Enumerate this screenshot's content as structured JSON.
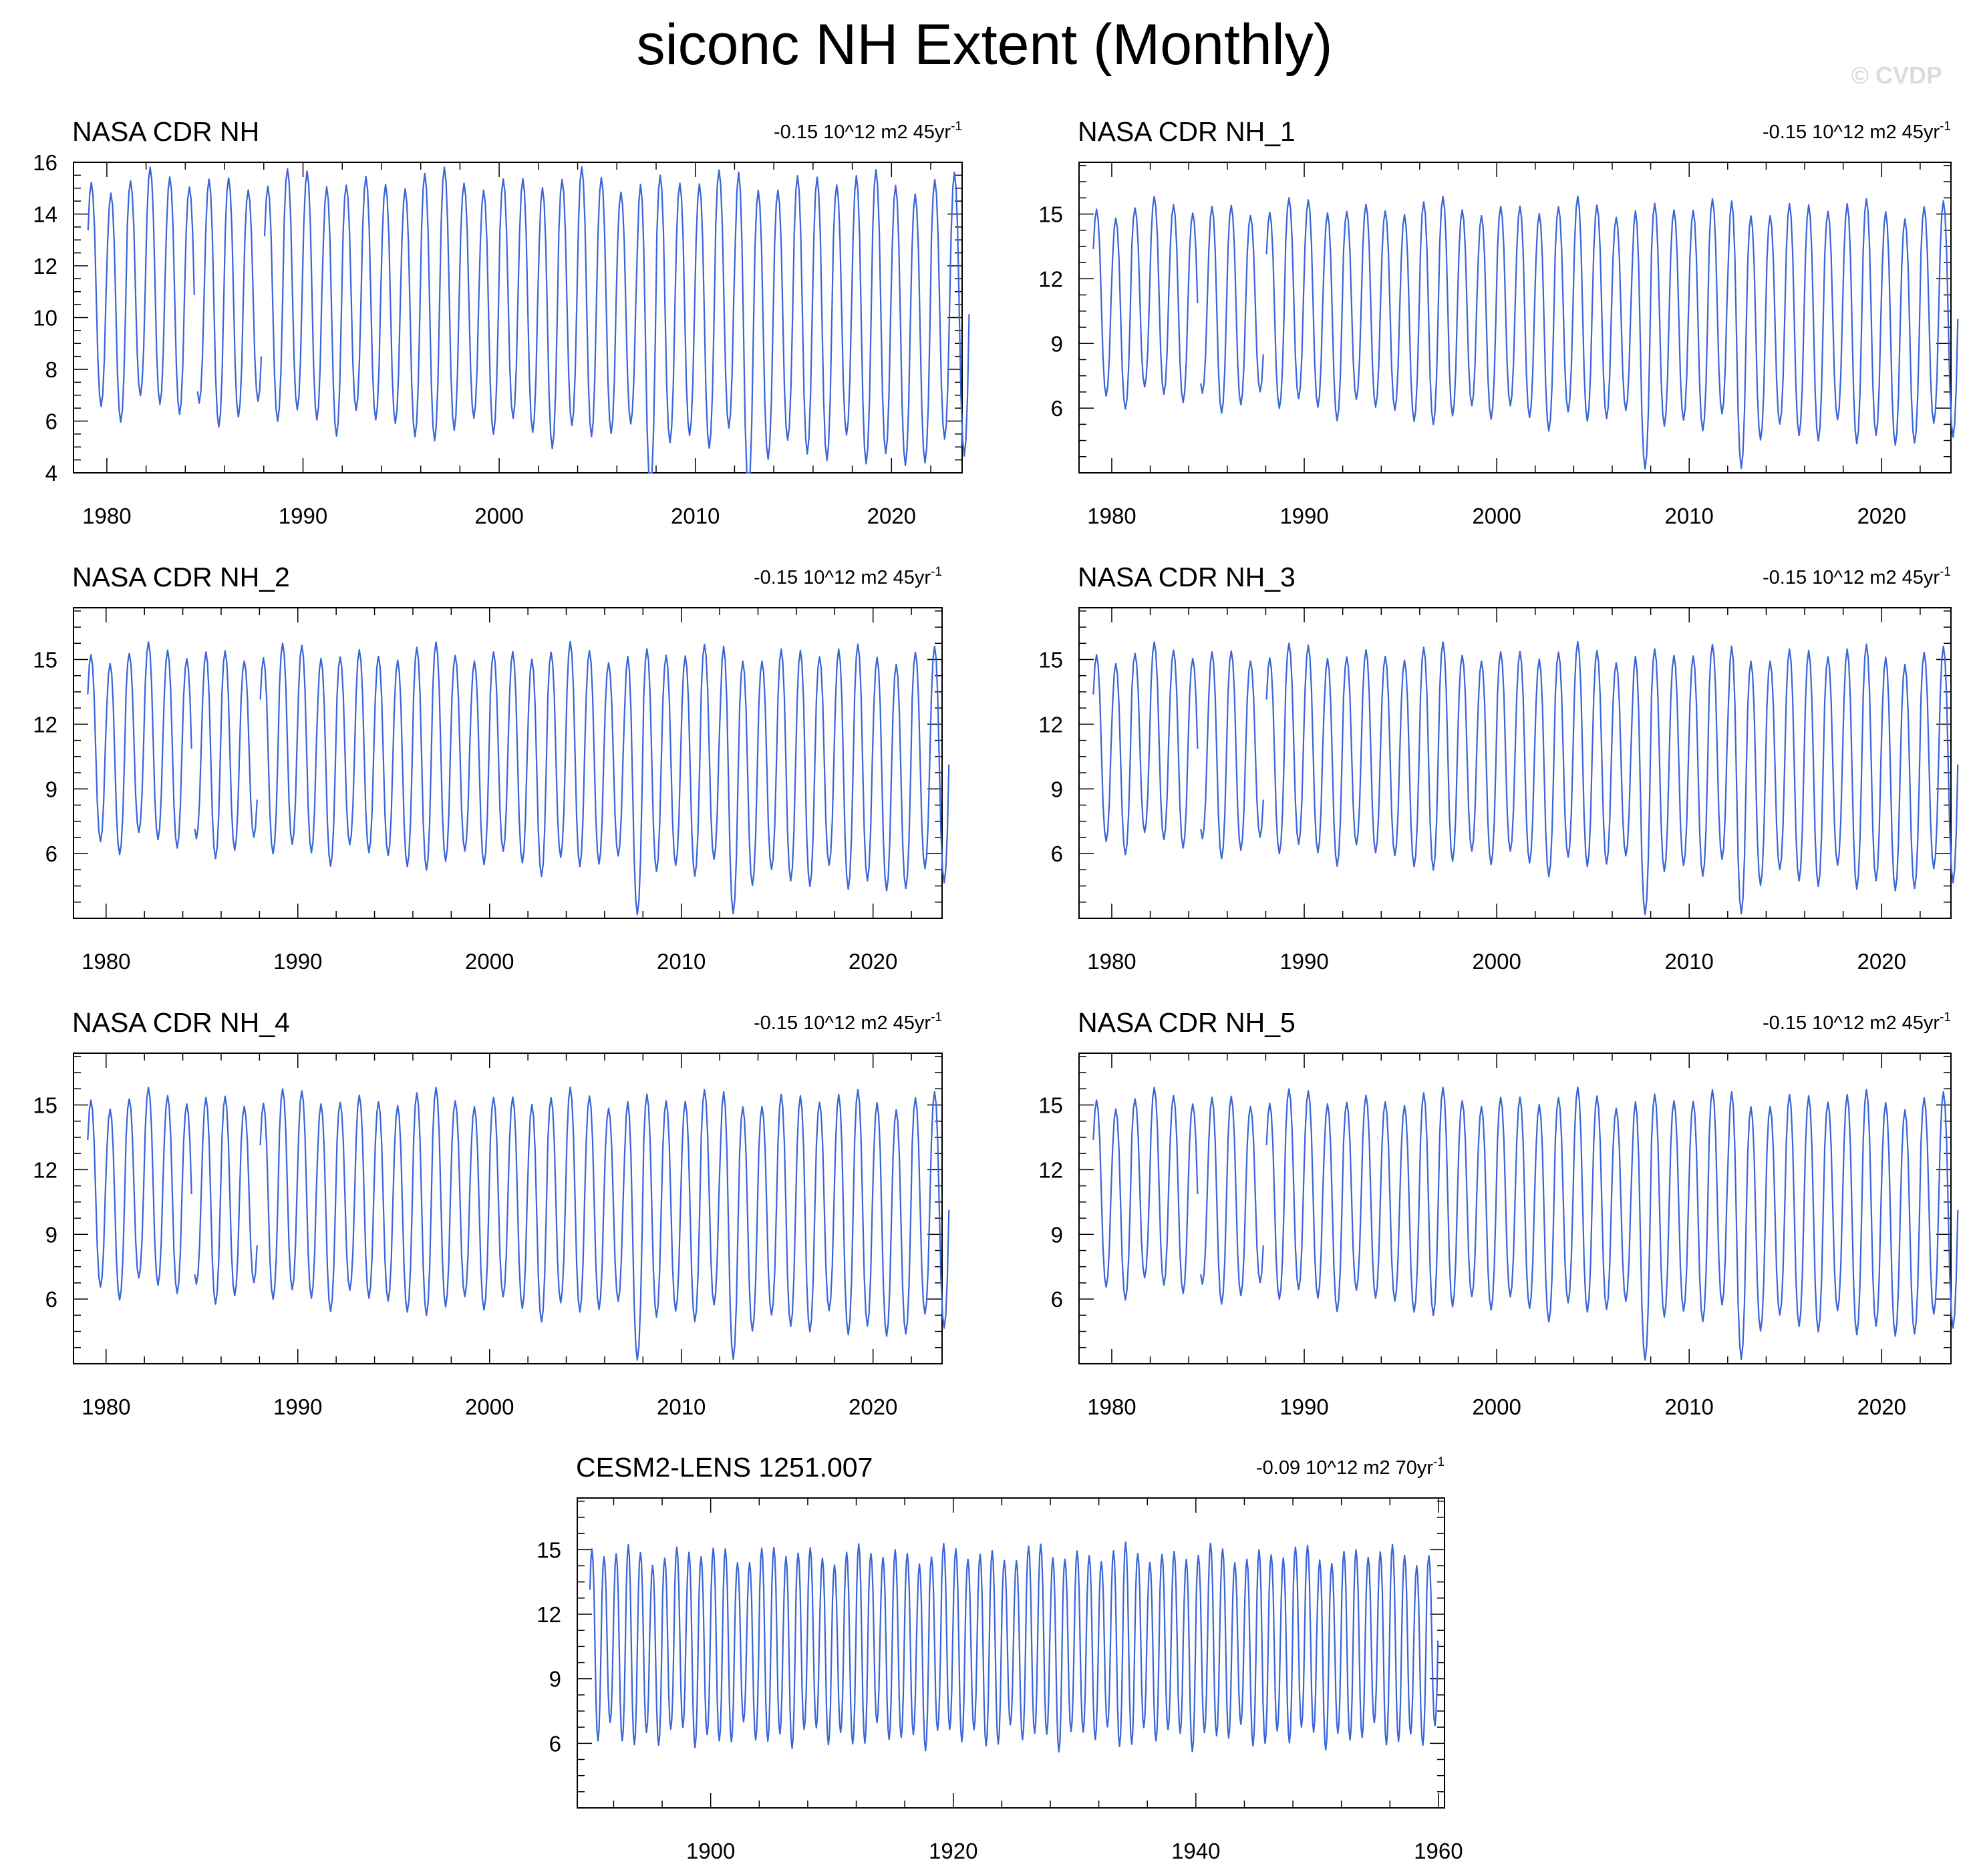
{
  "title": "siconc NH Extent (Monthly)",
  "credit": "© CVDP",
  "style": {
    "line_color": "#3a64d8",
    "axis_color": "#000000"
  },
  "chart_data": [
    {
      "type": "line",
      "title": "NASA CDR NH",
      "trend": "-0.15 10^12 m2 45yr",
      "trend_exp": "-1",
      "series": {
        "name": "NASA CDR NH",
        "start_year": 1979.0,
        "end_year": 2023.9,
        "months": 540,
        "max_mean": 15.3,
        "min_mean": 6.6,
        "min_trend_per_year": -0.045,
        "min_anomalies": {
          "1995": -0.9,
          "2007": -1.6,
          "2012": -1.9,
          "2016": -0.6,
          "2020": -0.5
        },
        "missing": [
          [
            1984.5,
            1984.6
          ],
          [
            1987.9,
            1988.0
          ]
        ]
      },
      "xlim": [
        1978.3,
        2023.6
      ],
      "xticks": [
        1980,
        1990,
        2000,
        2010,
        2020
      ],
      "ylim": [
        4,
        16
      ],
      "yticks": [
        4,
        6,
        8,
        10,
        12,
        14,
        16
      ]
    },
    {
      "type": "line",
      "title": "NASA CDR NH_1",
      "trend": "-0.15 10^12 m2 45yr",
      "trend_exp": "-1",
      "series": {
        "name": "NASA CDR NH_1",
        "start_year": 1979.0,
        "end_year": 2023.9,
        "months": 540,
        "max_mean": 15.3,
        "min_mean": 6.6,
        "min_trend_per_year": -0.045,
        "min_anomalies": {
          "1995": -0.9,
          "2007": -1.6,
          "2012": -1.9,
          "2016": -0.6,
          "2020": -0.5
        },
        "missing": [
          [
            1984.5,
            1984.6
          ],
          [
            1987.9,
            1988.0
          ]
        ]
      },
      "xlim": [
        1978.3,
        2023.6
      ],
      "xticks": [
        1980,
        1990,
        2000,
        2010,
        2020
      ],
      "ylim": [
        3.0,
        17.4
      ],
      "yticks": [
        6,
        9,
        12,
        15
      ]
    },
    {
      "type": "line",
      "title": "NASA CDR NH_2",
      "trend": "-0.15 10^12 m2 45yr",
      "trend_exp": "-1",
      "series": {
        "name": "NASA CDR NH_2",
        "start_year": 1979.0,
        "end_year": 2023.9,
        "months": 540,
        "max_mean": 15.3,
        "min_mean": 6.6,
        "min_trend_per_year": -0.045,
        "min_anomalies": {
          "1995": -0.9,
          "2007": -1.6,
          "2012": -1.9,
          "2016": -0.6,
          "2020": -0.5
        },
        "missing": [
          [
            1984.5,
            1984.6
          ],
          [
            1987.9,
            1988.0
          ]
        ]
      },
      "xlim": [
        1978.3,
        2023.6
      ],
      "xticks": [
        1980,
        1990,
        2000,
        2010,
        2020
      ],
      "ylim": [
        3.0,
        17.4
      ],
      "yticks": [
        6,
        9,
        12,
        15
      ]
    },
    {
      "type": "line",
      "title": "NASA CDR NH_3",
      "trend": "-0.15 10^12 m2 45yr",
      "trend_exp": "-1",
      "series": {
        "name": "NASA CDR NH_3",
        "start_year": 1979.0,
        "end_year": 2023.9,
        "months": 540,
        "max_mean": 15.3,
        "min_mean": 6.6,
        "min_trend_per_year": -0.045,
        "min_anomalies": {
          "1995": -0.9,
          "2007": -1.6,
          "2012": -1.9,
          "2016": -0.6,
          "2020": -0.5
        },
        "missing": [
          [
            1984.5,
            1984.6
          ],
          [
            1987.9,
            1988.0
          ]
        ]
      },
      "xlim": [
        1978.3,
        2023.6
      ],
      "xticks": [
        1980,
        1990,
        2000,
        2010,
        2020
      ],
      "ylim": [
        3.0,
        17.4
      ],
      "yticks": [
        6,
        9,
        12,
        15
      ]
    },
    {
      "type": "line",
      "title": "NASA CDR NH_4",
      "trend": "-0.15 10^12 m2 45yr",
      "trend_exp": "-1",
      "series": {
        "name": "NASA CDR NH_4",
        "start_year": 1979.0,
        "end_year": 2023.9,
        "months": 540,
        "max_mean": 15.3,
        "min_mean": 6.6,
        "min_trend_per_year": -0.045,
        "min_anomalies": {
          "1995": -0.9,
          "2007": -1.6,
          "2012": -1.9,
          "2016": -0.6,
          "2020": -0.5
        },
        "missing": [
          [
            1984.5,
            1984.6
          ],
          [
            1987.9,
            1988.0
          ]
        ]
      },
      "xlim": [
        1978.3,
        2023.6
      ],
      "xticks": [
        1980,
        1990,
        2000,
        2010,
        2020
      ],
      "ylim": [
        3.0,
        17.4
      ],
      "yticks": [
        6,
        9,
        12,
        15
      ]
    },
    {
      "type": "line",
      "title": "NASA CDR NH_5",
      "trend": "-0.15 10^12 m2 45yr",
      "trend_exp": "-1",
      "series": {
        "name": "NASA CDR NH_5",
        "start_year": 1979.0,
        "end_year": 2023.9,
        "months": 540,
        "max_mean": 15.3,
        "min_mean": 6.6,
        "min_trend_per_year": -0.045,
        "min_anomalies": {
          "1995": -0.9,
          "2007": -1.6,
          "2012": -1.9,
          "2016": -0.6,
          "2020": -0.5
        },
        "missing": [
          [
            1984.5,
            1984.6
          ],
          [
            1987.9,
            1988.0
          ]
        ]
      },
      "xlim": [
        1978.3,
        2023.6
      ],
      "xticks": [
        1980,
        1990,
        2000,
        2010,
        2020
      ],
      "ylim": [
        3.0,
        17.4
      ],
      "yticks": [
        6,
        9,
        12,
        15
      ]
    },
    {
      "type": "line",
      "title": "CESM2-LENS 1251.007",
      "trend": "-0.09 10^12 m2 70yr",
      "trend_exp": "-1",
      "series": {
        "name": "CESM2-LENS 1251.007",
        "start_year": 1890.0,
        "end_year": 1959.9,
        "months": 840,
        "max_mean": 14.8,
        "min_mean": 6.3,
        "min_trend_per_year": 0.0,
        "min_anomalies": {},
        "missing": []
      },
      "xlim": [
        1889.0,
        1960.5
      ],
      "xticks": [
        1900,
        1920,
        1940,
        1960
      ],
      "ylim": [
        3.0,
        17.4
      ],
      "yticks": [
        6,
        9,
        12,
        15
      ]
    }
  ]
}
